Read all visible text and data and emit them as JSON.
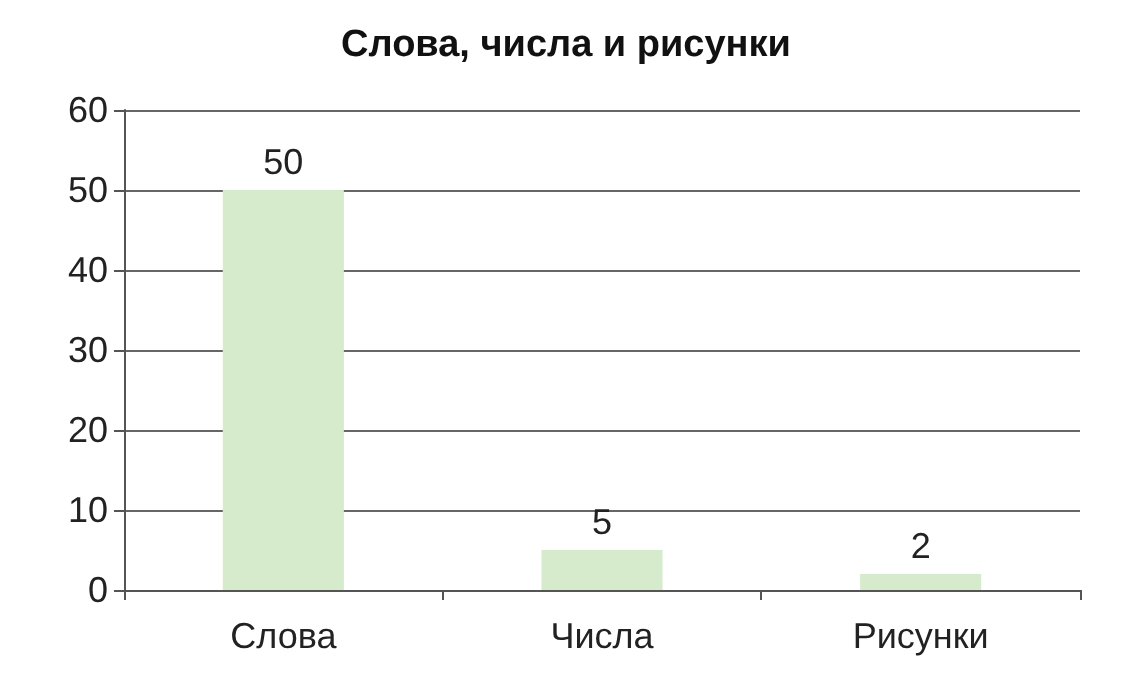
{
  "chart_data": {
    "type": "bar",
    "title": "Слова, числа и рисунки",
    "categories": [
      "Слова",
      "Числа",
      "Рисунки"
    ],
    "values": [
      50,
      5,
      2
    ],
    "color": "#d5ebcc",
    "ylim": [
      0,
      60
    ],
    "yticks": [
      0,
      10,
      20,
      30,
      40,
      50,
      60
    ],
    "grid": "y",
    "data_labels": true
  }
}
